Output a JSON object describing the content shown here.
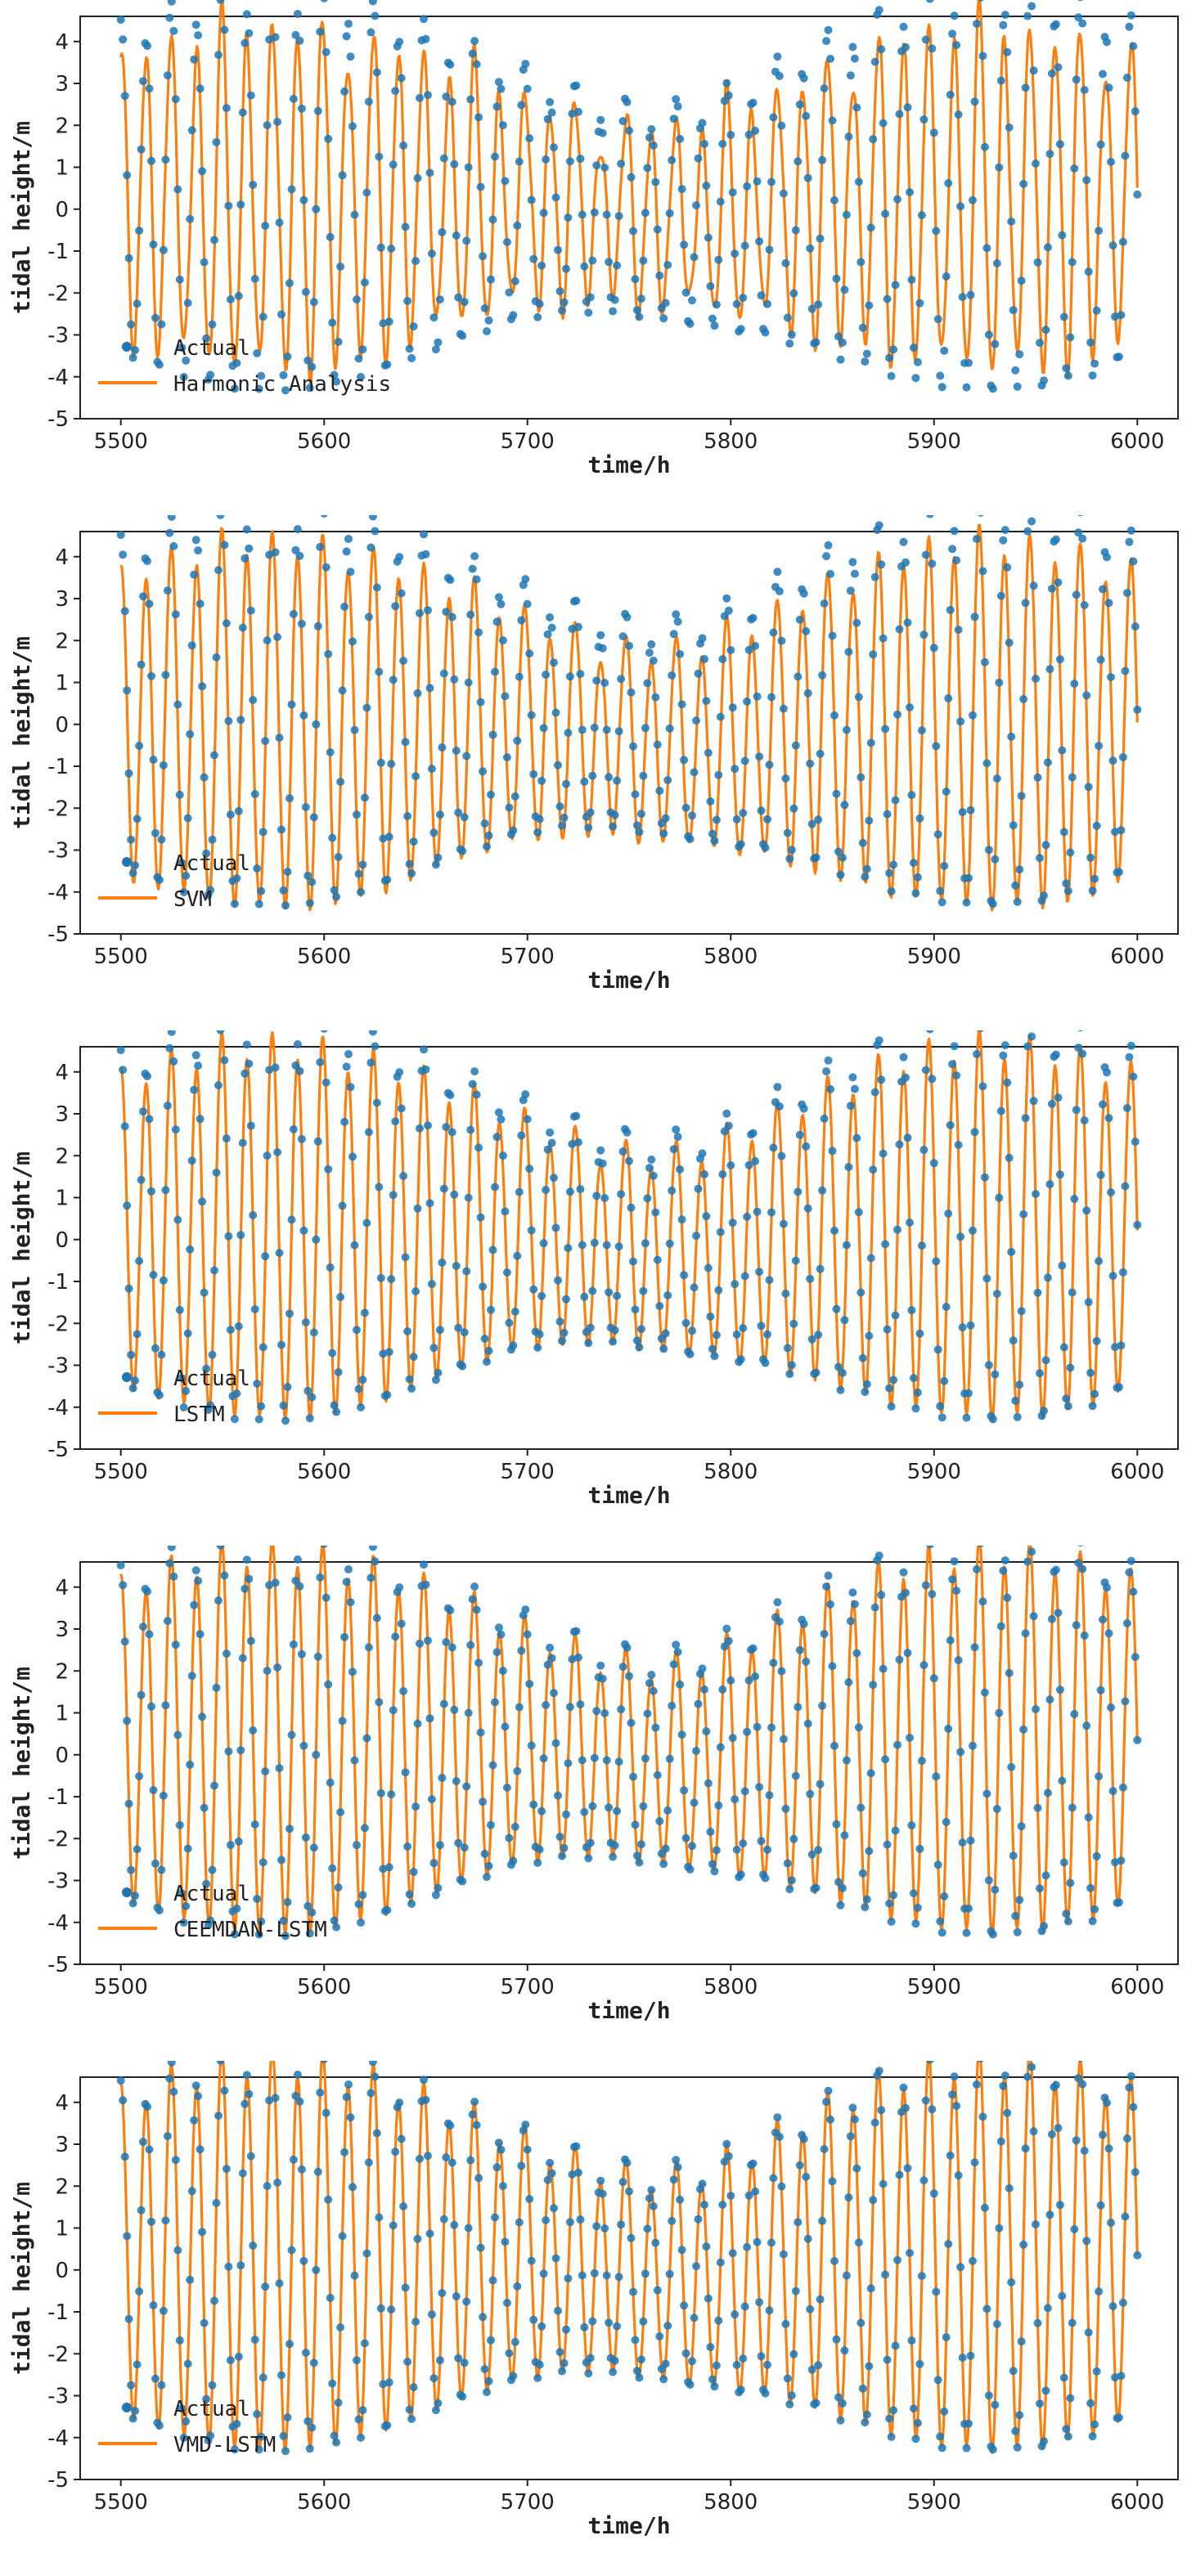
{
  "chart_data": [
    {
      "type": "line",
      "panel": "harmonic",
      "legend_location": "lower-left",
      "xlabel": "time/h",
      "ylabel": "tidal height/m",
      "xlim": [
        5480,
        6020
      ],
      "ylim": [
        -5,
        4.6
      ],
      "xticks": [
        "5500",
        "5600",
        "5700",
        "5800",
        "5900",
        "6000"
      ],
      "yticks": [
        "-5",
        "-4",
        "-3",
        "-2",
        "-1",
        "0",
        "1",
        "2",
        "3",
        "4"
      ],
      "series": [
        {
          "name": "Actual",
          "kind": "scatter",
          "color": "#1f77b4"
        },
        {
          "name": "Harmonic Analysis",
          "kind": "line",
          "color": "#ff7f0e"
        }
      ],
      "model": {
        "amp_scale": 0.86,
        "mean_shift": -0.05,
        "phase_shift": 0.0,
        "wiggle": 0.55
      }
    },
    {
      "type": "line",
      "panel": "svm",
      "legend_location": "lower-left",
      "xlabel": "time/h",
      "ylabel": "tidal height/m",
      "xlim": [
        5480,
        6020
      ],
      "ylim": [
        -5,
        4.6
      ],
      "xticks": [
        "5500",
        "5600",
        "5700",
        "5800",
        "5900",
        "6000"
      ],
      "yticks": [
        "-5",
        "-4",
        "-3",
        "-2",
        "-1",
        "0",
        "1",
        "2",
        "3",
        "4"
      ],
      "series": [
        {
          "name": "Actual",
          "kind": "scatter",
          "color": "#1f77b4"
        },
        {
          "name": "SVM",
          "kind": "line",
          "color": "#ff7f0e"
        }
      ],
      "model": {
        "amp_scale": 0.93,
        "mean_shift": -0.35,
        "phase_shift": 0.0,
        "wiggle": 0.15
      }
    },
    {
      "type": "line",
      "panel": "lstm",
      "legend_location": "lower-left",
      "xlabel": "time/h",
      "ylabel": "tidal height/m",
      "xlim": [
        5480,
        6020
      ],
      "ylim": [
        -5,
        4.6
      ],
      "xticks": [
        "5500",
        "5600",
        "5700",
        "5800",
        "5900",
        "6000"
      ],
      "yticks": [
        "-5",
        "-4",
        "-3",
        "-2",
        "-1",
        "0",
        "1",
        "2",
        "3",
        "4"
      ],
      "series": [
        {
          "name": "Actual",
          "kind": "scatter",
          "color": "#1f77b4"
        },
        {
          "name": "LSTM",
          "kind": "line",
          "color": "#ff7f0e"
        }
      ],
      "model": {
        "amp_scale": 0.95,
        "mean_shift": -0.15,
        "phase_shift": 0.0,
        "wiggle": 0.08
      }
    },
    {
      "type": "line",
      "panel": "ceemdan-lstm",
      "legend_location": "lower-left",
      "xlabel": "time/h",
      "ylabel": "tidal height/m",
      "xlim": [
        5480,
        6020
      ],
      "ylim": [
        -5,
        4.6
      ],
      "xticks": [
        "5500",
        "5600",
        "5700",
        "5800",
        "5900",
        "6000"
      ],
      "yticks": [
        "-5",
        "-4",
        "-3",
        "-2",
        "-1",
        "0",
        "1",
        "2",
        "3",
        "4"
      ],
      "series": [
        {
          "name": "Actual",
          "kind": "scatter",
          "color": "#1f77b4"
        },
        {
          "name": "CEEMDAN-LSTM",
          "kind": "line",
          "color": "#ff7f0e"
        }
      ],
      "model": {
        "amp_scale": 0.97,
        "mean_shift": -0.05,
        "phase_shift": 0.0,
        "wiggle": 0.05
      }
    },
    {
      "type": "line",
      "panel": "vmd-lstm",
      "legend_location": "lower-left",
      "xlabel": "time/h",
      "ylabel": "tidal height/m",
      "xlim": [
        5480,
        6020
      ],
      "ylim": [
        -5,
        4.6
      ],
      "xticks": [
        "5500",
        "5600",
        "5700",
        "5800",
        "5900",
        "6000"
      ],
      "yticks": [
        "-5",
        "-4",
        "-3",
        "-2",
        "-1",
        "0",
        "1",
        "2",
        "3",
        "4"
      ],
      "series": [
        {
          "name": "Actual",
          "kind": "scatter",
          "color": "#1f77b4"
        },
        {
          "name": "VMD-LSTM",
          "kind": "line",
          "color": "#ff7f0e"
        }
      ],
      "model": {
        "amp_scale": 0.99,
        "mean_shift": 0.0,
        "phase_shift": 0.0,
        "wiggle": 0.02
      }
    }
  ]
}
